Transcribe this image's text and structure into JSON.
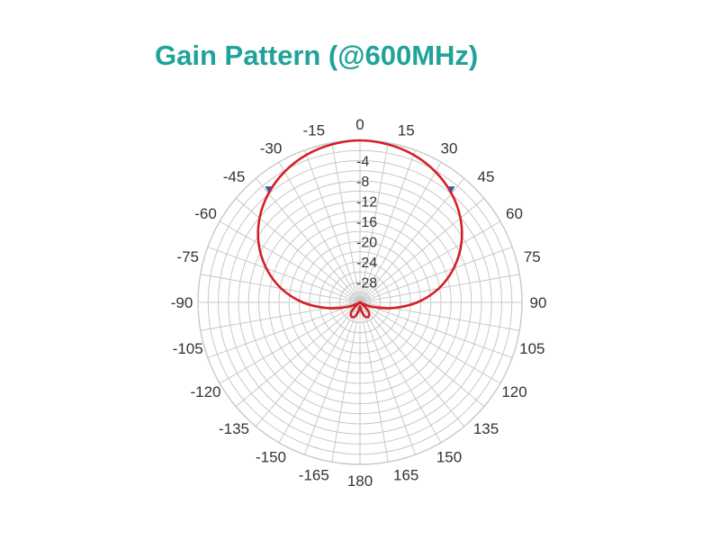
{
  "title": "Gain Pattern (@600MHz)",
  "colors": {
    "title": "#1fa39a",
    "grid": "#c8c8c8",
    "series": "#d42027",
    "marker": "#2b5fa8",
    "text": "#333333"
  },
  "chart_data": {
    "type": "polar-line",
    "title": "Gain Pattern (@600MHz)",
    "angle_unit": "deg",
    "angle_ticks": [
      0,
      15,
      30,
      45,
      60,
      75,
      90,
      105,
      120,
      135,
      150,
      165,
      180,
      -165,
      -150,
      -135,
      -120,
      -105,
      -90,
      -75,
      -60,
      -45,
      -30,
      -15
    ],
    "angle_tick_labels": [
      "0",
      "15",
      "30",
      "45",
      "60",
      "75",
      "90",
      "105",
      "120",
      "135",
      "150",
      "165",
      "180",
      "-165",
      "-150",
      "-135",
      "-120",
      "-105",
      "-90",
      "-75",
      "-60",
      "-45",
      "-30",
      "-15"
    ],
    "radial_range_db": [
      -32,
      0
    ],
    "radial_ticks": [
      -4,
      -8,
      -12,
      -16,
      -20,
      -24,
      -28
    ],
    "radial_tick_labels": [
      "-4",
      "-8",
      "-12",
      "-16",
      "-20",
      "-24",
      "-28"
    ],
    "grid": true,
    "series": [
      {
        "angles_deg": [
          0,
          10,
          20,
          30,
          40,
          50,
          60,
          70,
          80,
          90,
          100,
          110,
          120,
          125,
          130,
          135,
          140,
          150,
          160,
          170,
          180,
          -170,
          -160,
          -150,
          -140,
          -135,
          -130,
          -125,
          -120,
          -110,
          -100,
          -90,
          -80,
          -70,
          -60,
          -50,
          -40,
          -30,
          -20,
          -10
        ],
        "gain_db": [
          0.0,
          -0.3,
          -1.0,
          -2.2,
          -3.9,
          -6.1,
          -8.9,
          -12.3,
          -16.2,
          -20.7,
          -25.5,
          -29.5,
          -31.8,
          -32.0,
          -31.0,
          -30.0,
          -29.2,
          -28.7,
          -29.0,
          -30.2,
          -31.2,
          -30.2,
          -29.0,
          -28.7,
          -29.2,
          -30.0,
          -31.0,
          -32.0,
          -31.8,
          -29.5,
          -25.5,
          -20.7,
          -16.2,
          -12.3,
          -8.9,
          -6.1,
          -3.9,
          -2.2,
          -1.0,
          -0.3
        ]
      }
    ],
    "markers": [
      {
        "angle_deg": -39,
        "gain_db": -3.2
      },
      {
        "angle_deg": 39,
        "gain_db": -3.2
      }
    ]
  }
}
